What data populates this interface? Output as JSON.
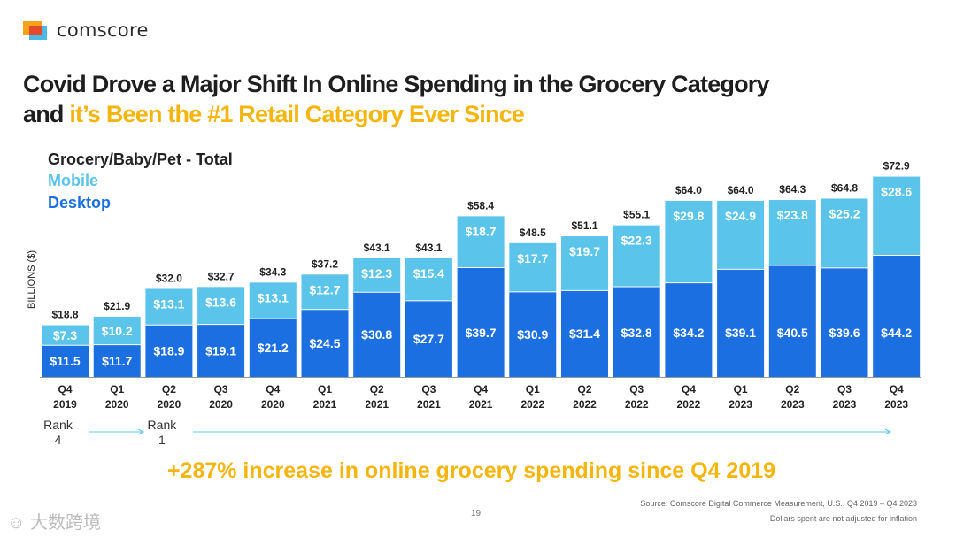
{
  "brand": {
    "name": "comscore"
  },
  "title": {
    "line1": "Covid Drove a Major Shift In Online Spending in the Grocery Category",
    "line2_prefix": "and ",
    "line2_highlight": "it’s Been the #1 Retail Category Ever Since"
  },
  "colors": {
    "mobile": "#5bc4ea",
    "desktop": "#1b6fe0",
    "highlight": "#f5b50f"
  },
  "chart_data": {
    "type": "bar",
    "stacked": true,
    "title": "Grocery/Baby/Pet - Total",
    "ylabel": "BILLIONS ($)",
    "xlabel": "",
    "ylim": [
      0,
      75
    ],
    "legend_position": "top-left",
    "categories": [
      [
        "Q4",
        "2019"
      ],
      [
        "Q1",
        "2020"
      ],
      [
        "Q2",
        "2020"
      ],
      [
        "Q3",
        "2020"
      ],
      [
        "Q4",
        "2020"
      ],
      [
        "Q1",
        "2021"
      ],
      [
        "Q2",
        "2021"
      ],
      [
        "Q3",
        "2021"
      ],
      [
        "Q4",
        "2021"
      ],
      [
        "Q1",
        "2022"
      ],
      [
        "Q2",
        "2022"
      ],
      [
        "Q3",
        "2022"
      ],
      [
        "Q4",
        "2022"
      ],
      [
        "Q1",
        "2023"
      ],
      [
        "Q2",
        "2023"
      ],
      [
        "Q3",
        "2023"
      ],
      [
        "Q4",
        "2023"
      ]
    ],
    "totals": [
      18.8,
      21.9,
      32.0,
      32.7,
      34.3,
      37.2,
      43.1,
      43.1,
      58.4,
      48.5,
      51.1,
      55.1,
      64.0,
      64.0,
      64.3,
      64.8,
      72.9
    ],
    "series": [
      {
        "name": "Desktop",
        "values": [
          11.5,
          11.7,
          18.9,
          19.1,
          21.2,
          24.5,
          30.8,
          27.7,
          39.7,
          30.9,
          31.4,
          32.8,
          34.2,
          39.1,
          40.5,
          39.6,
          44.2
        ]
      },
      {
        "name": "Mobile",
        "values": [
          7.3,
          10.2,
          13.1,
          13.6,
          13.1,
          12.7,
          12.3,
          15.4,
          18.7,
          17.7,
          19.7,
          22.3,
          29.8,
          24.9,
          23.8,
          25.2,
          28.6
        ]
      }
    ],
    "annotations": [
      {
        "label": [
          "Rank",
          "4"
        ],
        "at": "Q4 2019"
      },
      {
        "label": [
          "Rank",
          "1"
        ],
        "at": "Q2 2020"
      }
    ]
  },
  "headline": "+287% increase in online grocery spending since Q4 2019",
  "footer": {
    "source": "Source: Comscore Digital Commerce Measurement, U.S., Q4 2019 – Q4 2023",
    "note": "Dollars spent are not adjusted for inflation",
    "page": "19",
    "watermark": "大数跨境"
  }
}
